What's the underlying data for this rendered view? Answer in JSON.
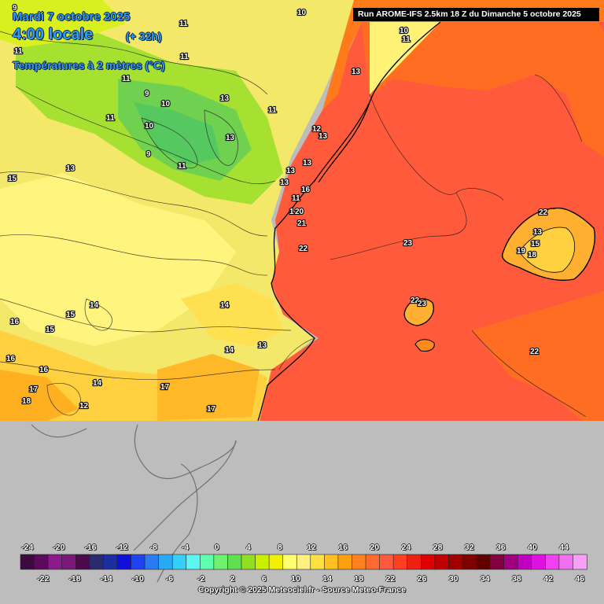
{
  "header": {
    "date": "Mardi 7 octobre 2025",
    "time": "4:00 locale",
    "offset": "(+ 32h)",
    "parameter": "Températures à 2 mètres (°C)"
  },
  "run_info": "Run AROME-IFS 2.5km 18 Z du Dimanche 5 octobre 2025",
  "isotherm_labels": {
    "l1": "9",
    "l2": "10",
    "l3": "11",
    "l4": "11",
    "l5": "10",
    "l6": "11",
    "l7": "13",
    "l8": "11",
    "l9": "10",
    "l10": "9",
    "l11": "10",
    "l12": "11",
    "l13": "13",
    "l14": "11",
    "l15": "13",
    "l16": "12",
    "l17": "13",
    "l18": "9",
    "l19": "11",
    "l20": "13",
    "l21": "13",
    "l22": "15",
    "l23": "13",
    "l24": "16",
    "l25": "11",
    "l26": "13",
    "l27": "1",
    "l28": "20",
    "l29": "21",
    "l30": "22",
    "l31": "23",
    "l32": "22",
    "l33": "13",
    "l34": "15",
    "l35": "19",
    "l36": "18",
    "l37": "22",
    "l38": "23",
    "l39": "22",
    "l40": "14",
    "l41": "15",
    "l42": "14",
    "l43": "16",
    "l44": "15",
    "l45": "16",
    "l46": "16",
    "l47": "17",
    "l48": "14",
    "l49": "18",
    "l50": "12",
    "l51": "17",
    "l52": "17",
    "l53": "14",
    "l54": "13",
    "l55": "11"
  },
  "legend": {
    "top_labels": [
      "-24",
      "-20",
      "-16",
      "-12",
      "-8",
      "-4",
      "0",
      "4",
      "8",
      "12",
      "16",
      "20",
      "24",
      "28",
      "32",
      "36",
      "40",
      "44"
    ],
    "bottom_labels": [
      "-22",
      "-18",
      "-14",
      "-10",
      "-6",
      "-2",
      "2",
      "6",
      "10",
      "14",
      "18",
      "22",
      "26",
      "30",
      "34",
      "38",
      "42",
      "46"
    ],
    "colors": [
      "#3d0a3f",
      "#5d0a5e",
      "#8b1a8c",
      "#7a1a78",
      "#4d0a4a",
      "#2a2a6e",
      "#1c2fa0",
      "#1010d8",
      "#1f43f0",
      "#2a7af0",
      "#2aaaf5",
      "#35d0fa",
      "#5cf5f0",
      "#60ffb0",
      "#70f070",
      "#60e050",
      "#90e020",
      "#c8f000",
      "#f0f000",
      "#ffff70",
      "#fff080",
      "#ffe040",
      "#ffc020",
      "#ffa010",
      "#ff8020",
      "#ff6a30",
      "#ff5a40",
      "#ff4020",
      "#f02010",
      "#e00000",
      "#c00000",
      "#a00000",
      "#800000",
      "#600000",
      "#800040",
      "#a00080",
      "#c000c0",
      "#e010e0",
      "#f040f0",
      "#f070f0",
      "#f8a0f8"
    ]
  },
  "copyright": "Copyright © 2025 Meteociel.fr - Source Meteo-France"
}
